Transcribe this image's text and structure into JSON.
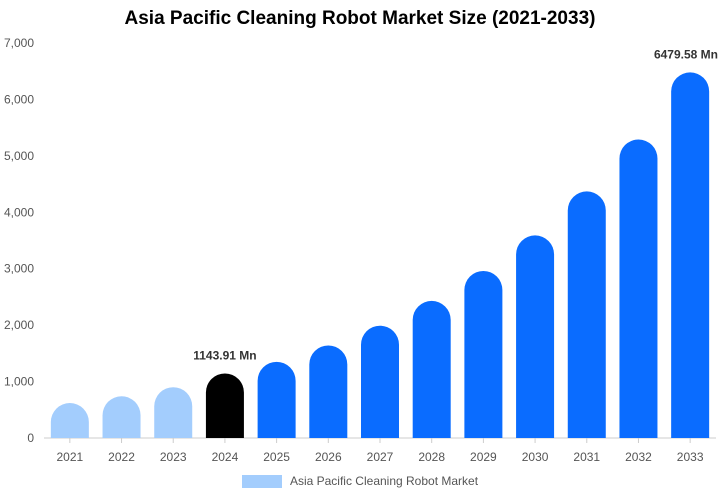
{
  "chart_data": {
    "type": "bar",
    "title": "Asia Pacific Cleaning Robot Market Size (2021-2033)",
    "categories": [
      "2021",
      "2022",
      "2023",
      "2024",
      "2025",
      "2026",
      "2027",
      "2028",
      "2029",
      "2030",
      "2031",
      "2032",
      "2033"
    ],
    "series": [
      {
        "name": "Asia Pacific Cleaning Robot Market",
        "values": [
          620,
          740,
          900,
          1143.91,
          1350,
          1640,
          1990,
          2430,
          2960,
          3590,
          4370,
          5290,
          6479.58
        ]
      }
    ],
    "ylim": [
      0,
      7000
    ],
    "yticks": [
      0,
      1000,
      2000,
      3000,
      4000,
      5000,
      6000,
      7000
    ],
    "ytick_labels": [
      "0",
      "1,000",
      "2,000",
      "3,000",
      "4,000",
      "5,000",
      "6,000",
      "7,000"
    ],
    "data_labels": [
      {
        "category": "2024",
        "text": "1143.91 Mn"
      },
      {
        "category": "2033",
        "text": "6479.58 Mn"
      }
    ],
    "colors": {
      "historical": "#a3cdfd",
      "current": "#000000",
      "forecast": "#0a6cff",
      "axis": "#cccccc",
      "legend": "#a3cdfd"
    },
    "bar_color_groups": [
      "historical",
      "historical",
      "historical",
      "current",
      "forecast",
      "forecast",
      "forecast",
      "forecast",
      "forecast",
      "forecast",
      "forecast",
      "forecast",
      "forecast"
    ],
    "grid": false,
    "legend_position": "bottom"
  }
}
